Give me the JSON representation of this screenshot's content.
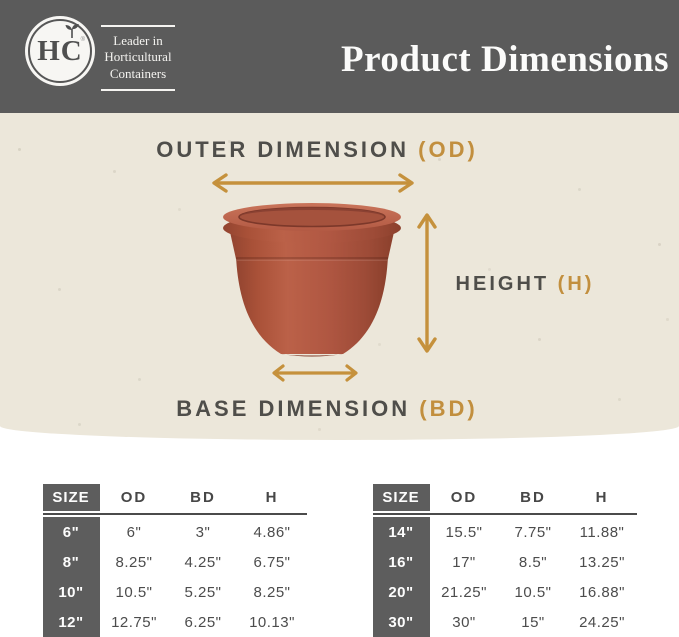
{
  "header": {
    "logo_text": "HC",
    "logo_registered": "®",
    "logo_leaf_icon": "leaf-sprout-icon",
    "tagline_lines": [
      "Leader in",
      "Horticultural",
      "Containers"
    ],
    "title": "Product Dimensions"
  },
  "diagram": {
    "pot_illustration": "terracotta-planter",
    "outer_dimension_label": "OUTER DIMENSION",
    "outer_dimension_abbr": "(OD)",
    "height_label": "HEIGHT",
    "height_abbr": "(H)",
    "base_dimension_label": "BASE DIMENSION",
    "base_dimension_abbr": "(BD)"
  },
  "colors": {
    "header_bg": "#5b5b5b",
    "hero_bg": "#ece7da",
    "accent_gold": "#c28f3e",
    "label_gray": "#4f4e4a",
    "pot_terracotta": "#b25843",
    "table_dark": "#5d5d5d"
  },
  "tables": [
    {
      "headers": [
        "SIZE",
        "OD",
        "BD",
        "H"
      ],
      "rows": [
        [
          "6\"",
          "6\"",
          "3\"",
          "4.86\""
        ],
        [
          "8\"",
          "8.25\"",
          "4.25\"",
          "6.75\""
        ],
        [
          "10\"",
          "10.5\"",
          "5.25\"",
          "8.25\""
        ],
        [
          "12\"",
          "12.75\"",
          "6.25\"",
          "10.13\""
        ]
      ]
    },
    {
      "headers": [
        "SIZE",
        "OD",
        "BD",
        "H"
      ],
      "rows": [
        [
          "14\"",
          "15.5\"",
          "7.75\"",
          "11.88\""
        ],
        [
          "16\"",
          "17\"",
          "8.5\"",
          "13.25\""
        ],
        [
          "20\"",
          "21.25\"",
          "10.5\"",
          "16.88\""
        ],
        [
          "30\"",
          "30\"",
          "15\"",
          "24.25\""
        ]
      ]
    }
  ]
}
